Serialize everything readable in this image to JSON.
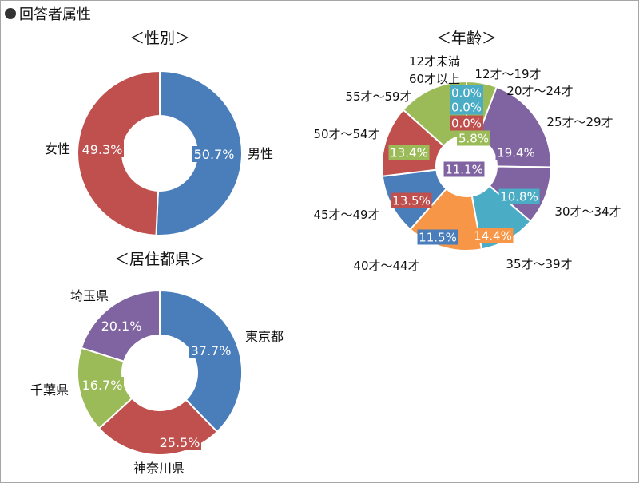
{
  "header": {
    "bullet": "●",
    "title": "回答者属性"
  },
  "chart_data": [
    {
      "type": "pie",
      "title": "＜性別＞",
      "slices": [
        {
          "label": "男性",
          "value": 50.7,
          "value_label": "50.7%",
          "color": "#4a7ebb"
        },
        {
          "label": "女性",
          "value": 49.3,
          "value_label": "49.3%",
          "color": "#c0504d"
        }
      ]
    },
    {
      "type": "pie",
      "title": "＜年齢＞",
      "slices": [
        {
          "label": "12才～19才",
          "value": 5.8,
          "value_label": "5.8%",
          "color": "#9bbb59"
        },
        {
          "label": "20才～24才",
          "value": 19.4,
          "value_label": "19.4%",
          "color": "#8064a2"
        },
        {
          "label": "25才～29才",
          "value": 11.1,
          "value_label": "11.1%",
          "color": "#8064a2"
        },
        {
          "label": "30才～34才",
          "value": 10.8,
          "value_label": "10.8%",
          "color": "#4bacc6"
        },
        {
          "label": "35才～39才",
          "value": 14.4,
          "value_label": "14.4%",
          "color": "#f79646"
        },
        {
          "label": "40才～44才",
          "value": 11.5,
          "value_label": "11.5%",
          "color": "#4a7ebb"
        },
        {
          "label": "45才～49才",
          "value": 13.5,
          "value_label": "13.5%",
          "color": "#c0504d"
        },
        {
          "label": "50才～54才",
          "value": 13.4,
          "value_label": "13.4%",
          "color": "#9bbb59"
        },
        {
          "label": "55才～59才",
          "value": 0.0,
          "value_label": "0.0%",
          "color": "#c0504d"
        },
        {
          "label": "60才以上",
          "value": 0.0,
          "value_label": "0.0%",
          "color": "#4bacc6"
        },
        {
          "label": "12才未満",
          "value": 0.0,
          "value_label": "0.0%",
          "color": "#4bacc6"
        }
      ]
    },
    {
      "type": "pie",
      "title": "＜居住都県＞",
      "slices": [
        {
          "label": "東京都",
          "value": 37.7,
          "value_label": "37.7%",
          "color": "#4a7ebb"
        },
        {
          "label": "神奈川県",
          "value": 25.5,
          "value_label": "25.5%",
          "color": "#c0504d"
        },
        {
          "label": "千葉県",
          "value": 16.7,
          "value_label": "16.7%",
          "color": "#9bbb59"
        },
        {
          "label": "埼玉県",
          "value": 20.1,
          "value_label": "20.1%",
          "color": "#8064a2"
        }
      ]
    }
  ]
}
